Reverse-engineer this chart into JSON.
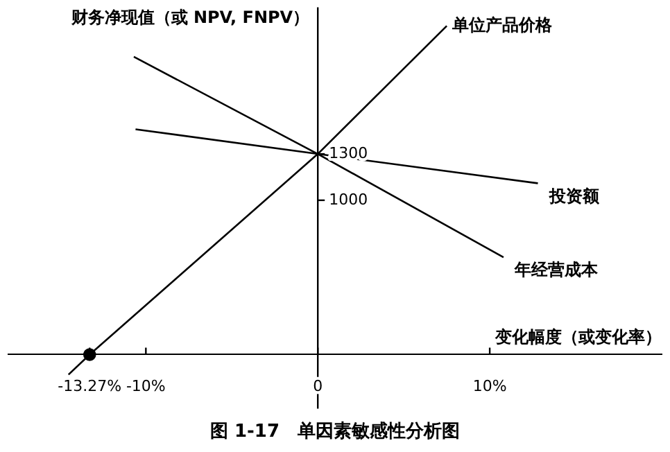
{
  "chart_data": {
    "type": "line",
    "title": "图 1-17　单因素敏感性分析图",
    "xlabel": "变化幅度（或变化率）",
    "ylabel": "财务净现值（或 NPV, FNPV）",
    "xlim": [
      -18,
      20
    ],
    "ylim": [
      -350,
      2250
    ],
    "xticks": [
      {
        "value": -13.27,
        "label": "-13.27%"
      },
      {
        "value": -10,
        "label": "-10%"
      },
      0,
      {
        "value": 10,
        "label": "10%"
      }
    ],
    "yticks": [
      1000,
      1300
    ],
    "grid": false,
    "legend": false,
    "marker": "none",
    "line_style": "solid",
    "series": [
      {
        "name": "单位产品价格",
        "color": "#000000",
        "x": [
          -14.5,
          -13.27,
          0,
          7.5
        ],
        "values": [
          -130,
          0,
          1300,
          2130
        ]
      },
      {
        "name": "投资额",
        "color": "#000000",
        "x": [
          -10.6,
          0,
          12.8
        ],
        "values": [
          1460,
          1300,
          1110
        ]
      },
      {
        "name": "年经营成本",
        "color": "#000000",
        "x": [
          -10.7,
          0,
          10.8
        ],
        "values": [
          1930,
          1300,
          630
        ]
      },
      {
        "type": "scatter",
        "marker": "circle",
        "color": "#000000",
        "x": [
          -13.27
        ],
        "values": [
          0
        ]
      }
    ]
  }
}
